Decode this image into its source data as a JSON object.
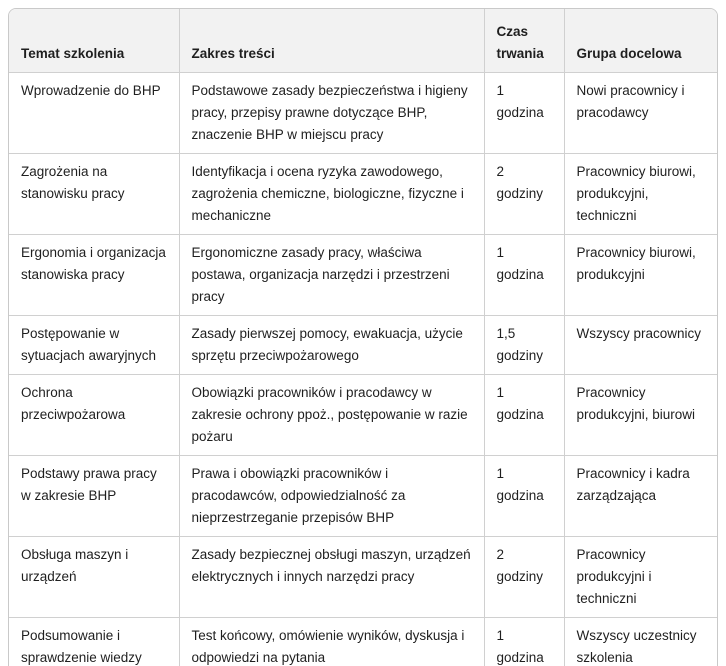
{
  "theme": {
    "header_bg": "#f2f2f2",
    "border_color": "#d0d0d0",
    "outer_border_color": "#c9c9c9",
    "text_color": "#1f1f1f",
    "body_bg": "#ffffff"
  },
  "table": {
    "columns": [
      "Temat szkolenia",
      "Zakres treści",
      "Czas trwania",
      "Grupa docelowa"
    ],
    "rows": [
      {
        "topic": "Wprowadzenie do BHP",
        "scope": "Podstawowe zasady bezpieczeństwa i higieny pracy, przepisy prawne dotyczące BHP, znaczenie BHP w miejscu pracy",
        "duration": "1 godzina",
        "group": "Nowi pracownicy i pracodawcy"
      },
      {
        "topic": "Zagrożenia na stanowisku pracy",
        "scope": "Identyfikacja i ocena ryzyka zawodowego, zagrożenia chemiczne, biologiczne, fizyczne i mechaniczne",
        "duration": "2 godziny",
        "group": "Pracownicy biurowi, produkcyjni, techniczni"
      },
      {
        "topic": "Ergonomia i organizacja stanowiska pracy",
        "scope": "Ergonomiczne zasady pracy, właściwa postawa, organizacja narzędzi i przestrzeni pracy",
        "duration": "1 godzina",
        "group": "Pracownicy biurowi, produkcyjni"
      },
      {
        "topic": "Postępowanie w sytuacjach awaryjnych",
        "scope": "Zasady pierwszej pomocy, ewakuacja, użycie sprzętu przeciwpożarowego",
        "duration": "1,5 godziny",
        "group": "Wszyscy pracownicy"
      },
      {
        "topic": "Ochrona przeciwpożarowa",
        "scope": "Obowiązki pracowników i pracodawcy w zakresie ochrony ppoż., postępowanie w razie pożaru",
        "duration": "1 godzina",
        "group": "Pracownicy produkcyjni, biurowi"
      },
      {
        "topic": "Podstawy prawa pracy w zakresie BHP",
        "scope": "Prawa i obowiązki pracowników i pracodawców, odpowiedzialność za nieprzestrzeganie przepisów BHP",
        "duration": "1 godzina",
        "group": "Pracownicy i kadra zarządzająca"
      },
      {
        "topic": "Obsługa maszyn i urządzeń",
        "scope": "Zasady bezpiecznej obsługi maszyn, urządzeń elektrycznych i innych narzędzi pracy",
        "duration": "2 godziny",
        "group": "Pracownicy produkcyjni i techniczni"
      },
      {
        "topic": "Podsumowanie i sprawdzenie wiedzy",
        "scope": "Test końcowy, omówienie wyników, dyskusja i odpowiedzi na pytania",
        "duration": "1 godzina",
        "group": "Wszyscy uczestnicy szkolenia"
      }
    ]
  }
}
